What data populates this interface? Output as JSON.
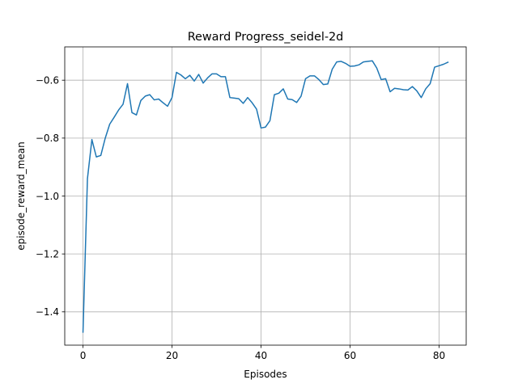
{
  "chart_data": {
    "type": "line",
    "title": "Reward Progress_seidel-2d",
    "xlabel": "Episodes",
    "ylabel": "episode_reward_mean",
    "xlim": [
      -4.1,
      86.1
    ],
    "ylim": [
      -1.515,
      -0.485
    ],
    "xticks": [
      0,
      20,
      40,
      60,
      80
    ],
    "xtick_labels": [
      "0",
      "20",
      "40",
      "60",
      "80"
    ],
    "yticks": [
      -1.4,
      -1.2,
      -1.0,
      -0.8,
      -0.6
    ],
    "ytick_labels": [
      "−1.4",
      "−1.2",
      "−1.0",
      "−0.8",
      "−0.6"
    ],
    "grid": true,
    "colors": {
      "line": "#1f77b4"
    },
    "series": [
      {
        "x": [
          0,
          1,
          2,
          3,
          4,
          5,
          6,
          7,
          8,
          9,
          10,
          11,
          12,
          13,
          14,
          15,
          16,
          17,
          18,
          19,
          20,
          21,
          22,
          23,
          24,
          25,
          26,
          27,
          28,
          29,
          30,
          31,
          32,
          33,
          34,
          35,
          36,
          37,
          38,
          39,
          40,
          41,
          42,
          43,
          44,
          45,
          46,
          47,
          48,
          49,
          50,
          51,
          52,
          53,
          54,
          55,
          56,
          57,
          58,
          59,
          60,
          61,
          62,
          63,
          64,
          65,
          66,
          67,
          68,
          69,
          70,
          71,
          72,
          73,
          74,
          75,
          76,
          77,
          78,
          79,
          80,
          81,
          82
        ],
        "values": [
          -1.47,
          -0.94,
          -0.805,
          -0.865,
          -0.86,
          -0.8,
          -0.752,
          -0.728,
          -0.703,
          -0.683,
          -0.612,
          -0.712,
          -0.72,
          -0.67,
          -0.655,
          -0.65,
          -0.668,
          -0.665,
          -0.678,
          -0.69,
          -0.66,
          -0.573,
          -0.582,
          -0.595,
          -0.583,
          -0.603,
          -0.58,
          -0.61,
          -0.592,
          -0.578,
          -0.578,
          -0.588,
          -0.588,
          -0.66,
          -0.662,
          -0.664,
          -0.68,
          -0.66,
          -0.678,
          -0.7,
          -0.765,
          -0.762,
          -0.74,
          -0.65,
          -0.645,
          -0.63,
          -0.665,
          -0.667,
          -0.677,
          -0.655,
          -0.595,
          -0.585,
          -0.585,
          -0.598,
          -0.615,
          -0.613,
          -0.562,
          -0.537,
          -0.535,
          -0.542,
          -0.552,
          -0.551,
          -0.547,
          -0.537,
          -0.535,
          -0.533,
          -0.558,
          -0.598,
          -0.595,
          -0.64,
          -0.628,
          -0.63,
          -0.633,
          -0.634,
          -0.622,
          -0.637,
          -0.66,
          -0.63,
          -0.612,
          -0.555,
          -0.55,
          -0.545,
          -0.538
        ]
      }
    ]
  }
}
